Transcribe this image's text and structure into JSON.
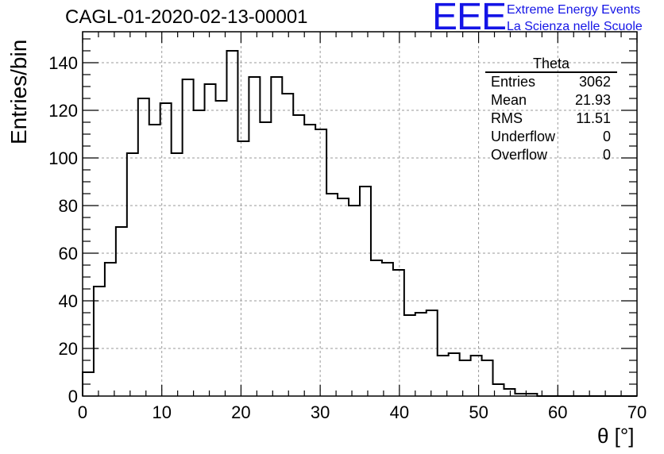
{
  "header": {
    "title": "CAGL-01-2020-02-13-00001",
    "logo": {
      "mark": "EEE",
      "line1": "Extreme Energy Events",
      "line2": "La Scienza nelle Scuole",
      "color": "#1414e6"
    }
  },
  "stats_box": {
    "title": "Theta",
    "rows": [
      {
        "label": "Entries",
        "value": "3062"
      },
      {
        "label": "Mean",
        "value": "21.93"
      },
      {
        "label": "RMS",
        "value": "11.51"
      },
      {
        "label": "Underflow",
        "value": "0"
      },
      {
        "label": "Overflow",
        "value": "0"
      }
    ]
  },
  "chart_data": {
    "type": "bar",
    "style": "step-histogram",
    "xlabel": "θ [°]",
    "ylabel": "Entries/bin",
    "xlim": [
      0,
      70
    ],
    "ylim": [
      0,
      153
    ],
    "grid": true,
    "bin_width": 1.4,
    "x_ticks": [
      0,
      10,
      20,
      30,
      40,
      50,
      60,
      70
    ],
    "y_ticks": [
      0,
      20,
      40,
      60,
      80,
      100,
      120,
      140
    ],
    "values": [
      10,
      46,
      56,
      71,
      102,
      125,
      114,
      123,
      102,
      133,
      120,
      131,
      124,
      145,
      107,
      134,
      115,
      134,
      127,
      118,
      114,
      112,
      85,
      83,
      80,
      88,
      57,
      56,
      53,
      34,
      35,
      36,
      17,
      18,
      15,
      17,
      15,
      5,
      3,
      1,
      1,
      0,
      0,
      0,
      0,
      0,
      0,
      0,
      0,
      0
    ]
  }
}
